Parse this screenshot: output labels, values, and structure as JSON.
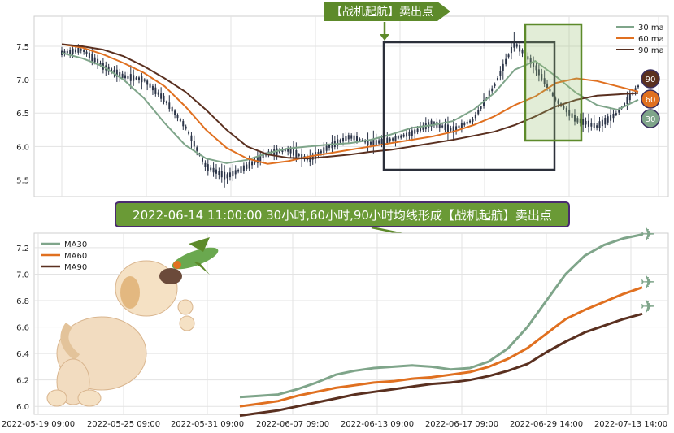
{
  "chart_data": [
    {
      "type": "candlestick-line",
      "signal_label": "【战机起航】卖出点",
      "yticks": [
        5.5,
        6.0,
        6.5,
        7.0,
        7.5
      ],
      "ylim": [
        5.25,
        7.95
      ],
      "legend": {
        "position": "top-right",
        "labels": [
          "30 ma",
          "60 ma",
          "90 ma"
        ]
      },
      "end_badges": [
        "90",
        "60",
        "30"
      ],
      "series": [
        {
          "name": "30 ma",
          "color": "#7fa58a",
          "values": [
            7.4,
            7.32,
            7.2,
            7.0,
            6.72,
            6.35,
            6.02,
            5.82,
            5.75,
            5.8,
            5.9,
            5.97,
            6.0,
            6.03,
            6.05,
            6.1,
            6.18,
            6.28,
            6.32,
            6.38,
            6.55,
            6.8,
            7.15,
            7.28,
            7.05,
            6.8,
            6.62,
            6.55,
            6.7
          ]
        },
        {
          "name": "60 ma",
          "color": "#e07020",
          "values": [
            7.53,
            7.48,
            7.38,
            7.25,
            7.1,
            6.9,
            6.6,
            6.25,
            5.98,
            5.82,
            5.74,
            5.78,
            5.85,
            5.9,
            5.95,
            6.0,
            6.05,
            6.1,
            6.15,
            6.22,
            6.32,
            6.45,
            6.62,
            6.75,
            6.95,
            7.02,
            6.98,
            6.9,
            6.82
          ]
        },
        {
          "name": "90 ma",
          "color": "#5a3020",
          "values": [
            7.53,
            7.5,
            7.45,
            7.35,
            7.2,
            7.02,
            6.82,
            6.55,
            6.25,
            6.0,
            5.88,
            5.83,
            5.82,
            5.85,
            5.88,
            5.92,
            5.95,
            6.0,
            6.05,
            6.1,
            6.16,
            6.22,
            6.32,
            6.45,
            6.6,
            6.7,
            6.76,
            6.78,
            6.8
          ]
        },
        {
          "name": "price",
          "color": "#2b3448",
          "values": [
            7.4,
            7.45,
            7.2,
            7.05,
            7.0,
            6.7,
            6.3,
            5.7,
            5.55,
            5.7,
            5.9,
            5.95,
            5.8,
            6.0,
            6.15,
            6.05,
            6.1,
            6.2,
            6.35,
            6.25,
            6.4,
            6.9,
            7.55,
            7.2,
            6.7,
            6.4,
            6.3,
            6.5,
            6.9
          ]
        }
      ]
    },
    {
      "type": "line",
      "annotation": "2022-06-14 11:00:00 30小时,60小时,90小时均线形成【战机起航】卖出点",
      "x_labels": [
        "2022-05-19 09:00",
        "2022-05-25 09:00",
        "2022-05-31 09:00",
        "2022-06-07 09:00",
        "2022-06-13 09:00",
        "2022-06-17 09:00",
        "2022-06-29 14:00",
        "2022-07-13 14:00"
      ],
      "yticks": [
        6.0,
        6.2,
        6.4,
        6.6,
        6.8,
        7.0,
        7.2
      ],
      "ylim": [
        5.94,
        7.31
      ],
      "legend": {
        "position": "top-left",
        "labels": [
          "MA30",
          "MA60",
          "MA90"
        ]
      },
      "series": [
        {
          "name": "MA30",
          "color": "#7fa58a",
          "values": [
            6.07,
            6.08,
            6.09,
            6.13,
            6.18,
            6.24,
            6.27,
            6.29,
            6.3,
            6.31,
            6.3,
            6.28,
            6.29,
            6.34,
            6.44,
            6.6,
            6.8,
            7.0,
            7.14,
            7.22,
            7.27,
            7.3
          ]
        },
        {
          "name": "MA60",
          "color": "#e07020",
          "values": [
            6.0,
            6.02,
            6.04,
            6.08,
            6.11,
            6.14,
            6.16,
            6.18,
            6.19,
            6.21,
            6.22,
            6.24,
            6.26,
            6.3,
            6.36,
            6.44,
            6.55,
            6.66,
            6.73,
            6.79,
            6.85,
            6.9
          ]
        },
        {
          "name": "MA90",
          "color": "#5a3020",
          "values": [
            5.93,
            5.95,
            5.97,
            6.0,
            6.03,
            6.06,
            6.09,
            6.11,
            6.13,
            6.15,
            6.17,
            6.18,
            6.2,
            6.23,
            6.27,
            6.32,
            6.41,
            6.49,
            6.56,
            6.61,
            6.66,
            6.7
          ]
        }
      ]
    }
  ]
}
